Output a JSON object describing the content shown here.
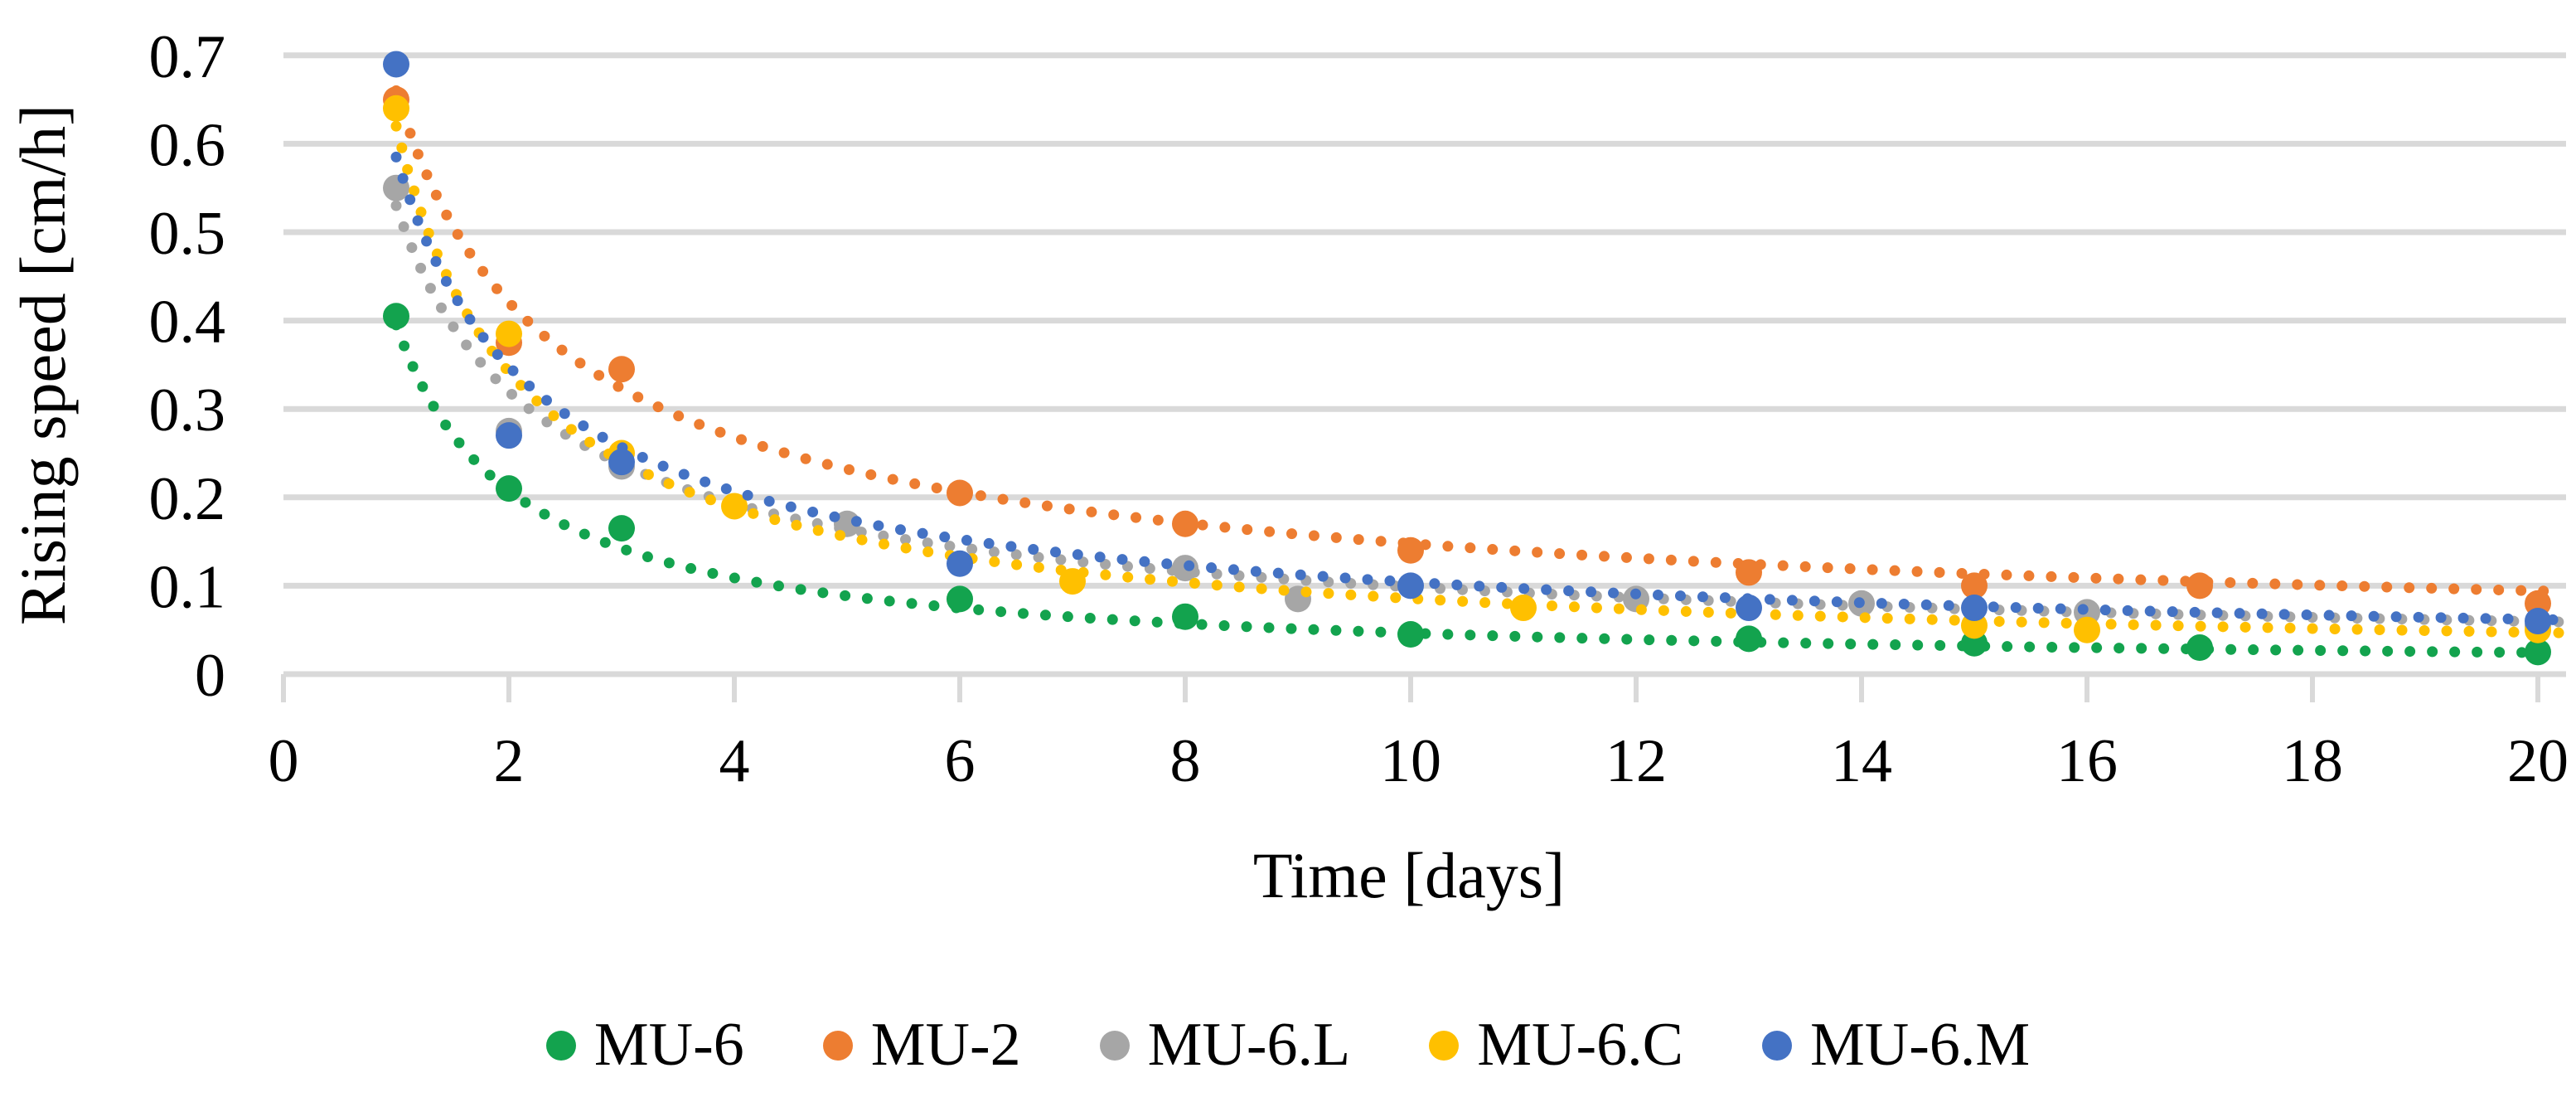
{
  "y_axis": {
    "title": "Rising speed [cm/h]",
    "tick_labels": [
      "0",
      "0.1",
      "0.2",
      "0.3",
      "0.4",
      "0.5",
      "0.6",
      "0.7"
    ]
  },
  "x_axis": {
    "title": "Time [days]",
    "tick_labels": [
      "0",
      "2",
      "4",
      "6",
      "8",
      "10",
      "12",
      "14",
      "16",
      "18",
      "20"
    ]
  },
  "chart_data": {
    "type": "scatter",
    "title": "",
    "xlabel": "Time [days]",
    "ylabel": "Rising speed [cm/h]",
    "xlim": [
      0,
      20
    ],
    "ylim": [
      0,
      0.7
    ],
    "grid": "horizontal",
    "legend_position": "bottom",
    "marker_style": "filled-circle",
    "trendline_style": "dotted-power-fit",
    "series": [
      {
        "name": "MU-6",
        "color": "#13A34E",
        "points": [
          [
            1,
            0.405
          ],
          [
            2,
            0.21
          ],
          [
            3,
            0.165
          ],
          [
            6,
            0.085
          ],
          [
            8,
            0.065
          ],
          [
            10,
            0.045
          ],
          [
            13,
            0.04
          ],
          [
            15,
            0.035
          ],
          [
            17,
            0.03
          ],
          [
            20,
            0.025
          ]
        ],
        "trendline": {
          "type": "power",
          "a": 0.395,
          "b": -0.93
        }
      },
      {
        "name": "MU-2",
        "color": "#ED7D31",
        "points": [
          [
            1,
            0.65
          ],
          [
            2,
            0.375
          ],
          [
            3,
            0.345
          ],
          [
            6,
            0.205
          ],
          [
            8,
            0.17
          ],
          [
            10,
            0.14
          ],
          [
            13,
            0.115
          ],
          [
            15,
            0.1
          ],
          [
            17,
            0.1
          ],
          [
            20,
            0.08
          ]
        ],
        "trendline": {
          "type": "power",
          "a": 0.66,
          "b": -0.65
        }
      },
      {
        "name": "MU-6.L",
        "color": "#A6A6A6",
        "points": [
          [
            1,
            0.55
          ],
          [
            2,
            0.275
          ],
          [
            3,
            0.235
          ],
          [
            5,
            0.17
          ],
          [
            8,
            0.12
          ],
          [
            9,
            0.085
          ],
          [
            12,
            0.085
          ],
          [
            14,
            0.08
          ],
          [
            16,
            0.07
          ],
          [
            20,
            0.055
          ]
        ],
        "trendline": {
          "type": "power",
          "a": 0.53,
          "b": -0.73
        }
      },
      {
        "name": "MU-6.C",
        "color": "#FFC000",
        "points": [
          [
            1,
            0.64
          ],
          [
            2,
            0.385
          ],
          [
            3,
            0.25
          ],
          [
            4,
            0.19
          ],
          [
            7,
            0.105
          ],
          [
            11,
            0.075
          ],
          [
            15,
            0.055
          ],
          [
            16,
            0.05
          ],
          [
            20,
            0.05
          ]
        ],
        "trendline": {
          "type": "power",
          "a": 0.62,
          "b": -0.86
        }
      },
      {
        "name": "MU-6.M",
        "color": "#4472C4",
        "points": [
          [
            1,
            0.69
          ],
          [
            2,
            0.27
          ],
          [
            3,
            0.24
          ],
          [
            6,
            0.125
          ],
          [
            10,
            0.1
          ],
          [
            13,
            0.075
          ],
          [
            15,
            0.075
          ],
          [
            20,
            0.06
          ]
        ],
        "trendline": {
          "type": "power",
          "a": 0.585,
          "b": -0.75
        }
      }
    ],
    "style": {
      "gridline_color": "#D9D9D9",
      "tick_color": "#D9D9D9",
      "text_color": "#000000"
    }
  }
}
